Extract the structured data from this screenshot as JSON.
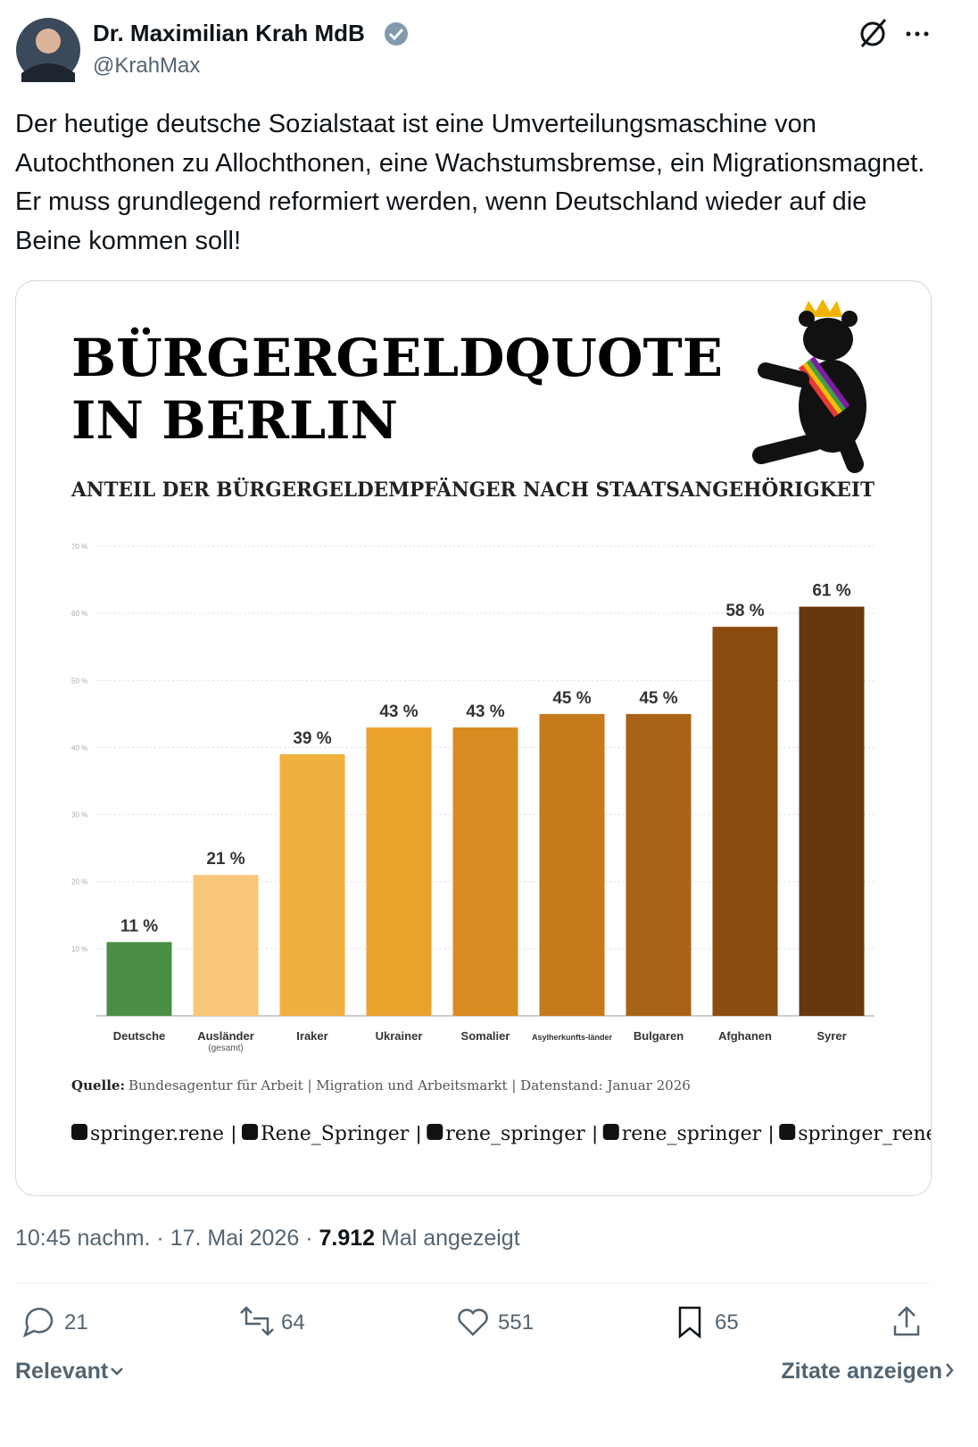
{
  "author": {
    "name": "Dr. Maximilian Krah MdB",
    "handle": "@KrahMax"
  },
  "text": "Der heutige deutsche Sozialstaat ist eine Umverteilungsmaschine von Autochthonen zu Allochthonen, eine Wachstumsbremse, ein Migrationsmagnet. Er muss grundlegend reformiert werden, wenn Deutschland wieder auf die Beine kommen soll!",
  "chart": {
    "type": "bar",
    "title_lines": [
      "BÜRGERGELDQUOTE",
      "IN BERLIN"
    ],
    "subtitle": "ANTEIL DER BÜRGERGELDEMPFÄNGER NACH STAATSANGEHÖRIGKEIT",
    "categories": [
      "Deutsche",
      "Ausländer",
      "Iraker",
      "Ukrainer",
      "Somalier",
      "Asylherkunfts-länder",
      "Bulgaren",
      "Afghanen",
      "Syrer"
    ],
    "category_notes": [
      null,
      "(gesamt)",
      null,
      null,
      null,
      null,
      null,
      null,
      null
    ],
    "values": [
      11,
      21,
      39,
      43,
      43,
      45,
      45,
      58,
      61
    ],
    "value_labels": [
      "11 %",
      "21 %",
      "39 %",
      "43 %",
      "43 %",
      "45 %",
      "45 %",
      "58 %",
      "61 %"
    ],
    "colors": [
      "#4a8f45",
      "#f7c676",
      "#f0b040",
      "#eba22c",
      "#d98c22",
      "#c77a1c",
      "#a86316",
      "#8a4c0f",
      "#66380c"
    ],
    "ylim": [
      0,
      70
    ],
    "yticks": [
      {
        "value": 10,
        "label": "10 %"
      },
      {
        "value": 20,
        "label": "20 %"
      },
      {
        "value": 30,
        "label": "30 %"
      },
      {
        "value": 40,
        "label": "40 %"
      },
      {
        "value": 50,
        "label": "50 %"
      },
      {
        "value": 60,
        "label": "60 %"
      },
      {
        "value": 70,
        "label": "70 %"
      }
    ],
    "grid": true,
    "source_label": "Quelle:",
    "source": "Bundesagentur für Arbeit | Migration und Arbeitsmarkt | Datenstand: Januar 2026",
    "socials": [
      "springer.rene",
      "Rene_Springer",
      "rene_springer",
      "rene_springer",
      "springer_rene"
    ],
    "social_separator": "|"
  },
  "meta": {
    "timestamp": "10:45 nachm. · 17. Mai 2026 ·",
    "views": "7.912",
    "views_label": "Mal angezeigt"
  },
  "actions": {
    "replies": "21",
    "reposts": "64",
    "likes": "551",
    "bookmarks": "65"
  },
  "footer": {
    "sort": "Relevant",
    "quotes": "Zitate anzeigen"
  }
}
